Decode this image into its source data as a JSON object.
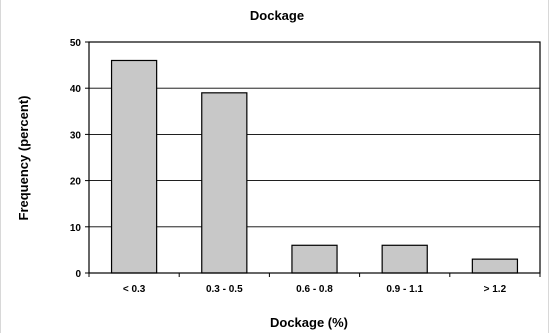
{
  "chart_data": {
    "type": "bar",
    "title": "Dockage",
    "xlabel": "Dockage (%)",
    "ylabel": "Frequency (percent)",
    "categories": [
      "< 0.3",
      "0.3 - 0.5",
      "0.6 - 0.8",
      "0.9 - 1.1",
      "> 1.2"
    ],
    "values": [
      46,
      39,
      6,
      6,
      3
    ],
    "ylim": [
      0,
      50
    ],
    "yticks": [
      0,
      10,
      20,
      30,
      40,
      50
    ],
    "grid": true,
    "legend": "none",
    "colors": {
      "bar_fill": "#c8c8c8",
      "bar_stroke": "#000000",
      "grid": "#000000"
    }
  }
}
